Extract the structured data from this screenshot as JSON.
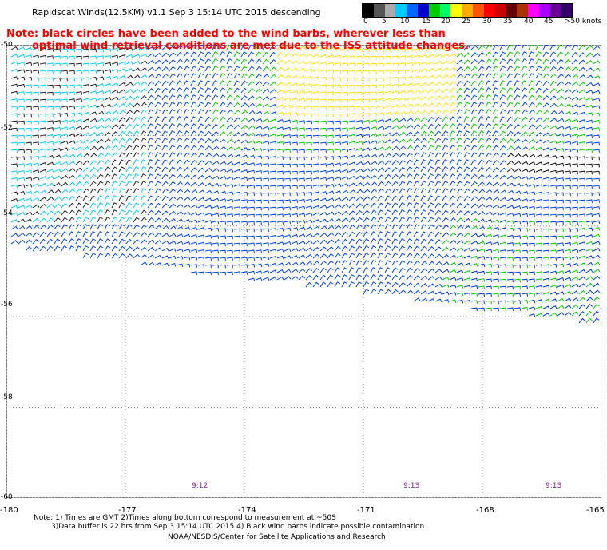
{
  "title": "Rapidscat Winds(12.5KM) v1.1 Sep  3 15:14 UTC 2015 descending",
  "notice": {
    "line1": "Note: black circles have been added to the wind barbs, wherever less than",
    "line2": "optimal wind retrieval conditions are met due to the ISS attitude changes."
  },
  "legend": {
    "colors": [
      "#000000",
      "#555555",
      "#aaaaaa",
      "#00ccff",
      "#0066ff",
      "#0000cc",
      "#00cc00",
      "#00ff66",
      "#ffff00",
      "#ffaa00",
      "#ff5500",
      "#ff0000",
      "#cc0000",
      "#660000",
      "#aa3300",
      "#ff00ff",
      "#aa00ff",
      "#660099",
      "#330066"
    ],
    "labels": [
      "0",
      "5",
      "10",
      "15",
      "20",
      "25",
      "30",
      "35",
      "40",
      "45",
      ">50 knots"
    ]
  },
  "axes": {
    "x_ticks": [
      "-180",
      "-177",
      "-174",
      "-171",
      "-168",
      "-165"
    ],
    "y_ticks": [
      "-50",
      "-52",
      "-54",
      "-56",
      "-58",
      "-60"
    ]
  },
  "times": [
    "9:12",
    "9:13",
    "9:13"
  ],
  "footer": {
    "line1": "Note: 1) Times are GMT 2)Times along bottom correspond to measurement at ~50S",
    "line2": "3)Data buffer is 22 hrs from Sep  3 15:14 UTC 2015 4) Black wind barbs indicate possible contamination",
    "line3": "NOAA/NESDIS/Center for Satellite Applications and Research"
  }
}
